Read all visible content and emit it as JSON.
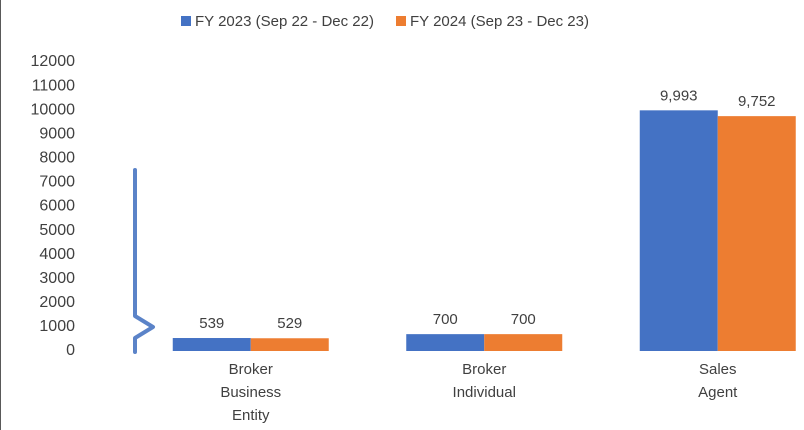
{
  "chart_data": {
    "type": "bar",
    "categories": [
      "Broker Business Entity",
      "Broker Individual",
      "Sales Agent"
    ],
    "series": [
      {
        "name": "FY 2023 (Sep 22 - Dec 22)",
        "color": "#4472c4",
        "values": [
          539,
          700,
          9993
        ],
        "value_labels": [
          "539",
          "700",
          "9,993"
        ]
      },
      {
        "name": "FY 2024 (Sep 23 - Dec 23)",
        "color": "#ed7d31",
        "values": [
          529,
          700,
          9752
        ],
        "value_labels": [
          "529",
          "700",
          "9,752"
        ]
      }
    ],
    "ylim": [
      0,
      12000
    ],
    "yticks": [
      0,
      1000,
      2000,
      3000,
      4000,
      5000,
      6000,
      7000,
      8000,
      9000,
      10000,
      11000,
      12000
    ],
    "grid": false,
    "legend": "top"
  }
}
